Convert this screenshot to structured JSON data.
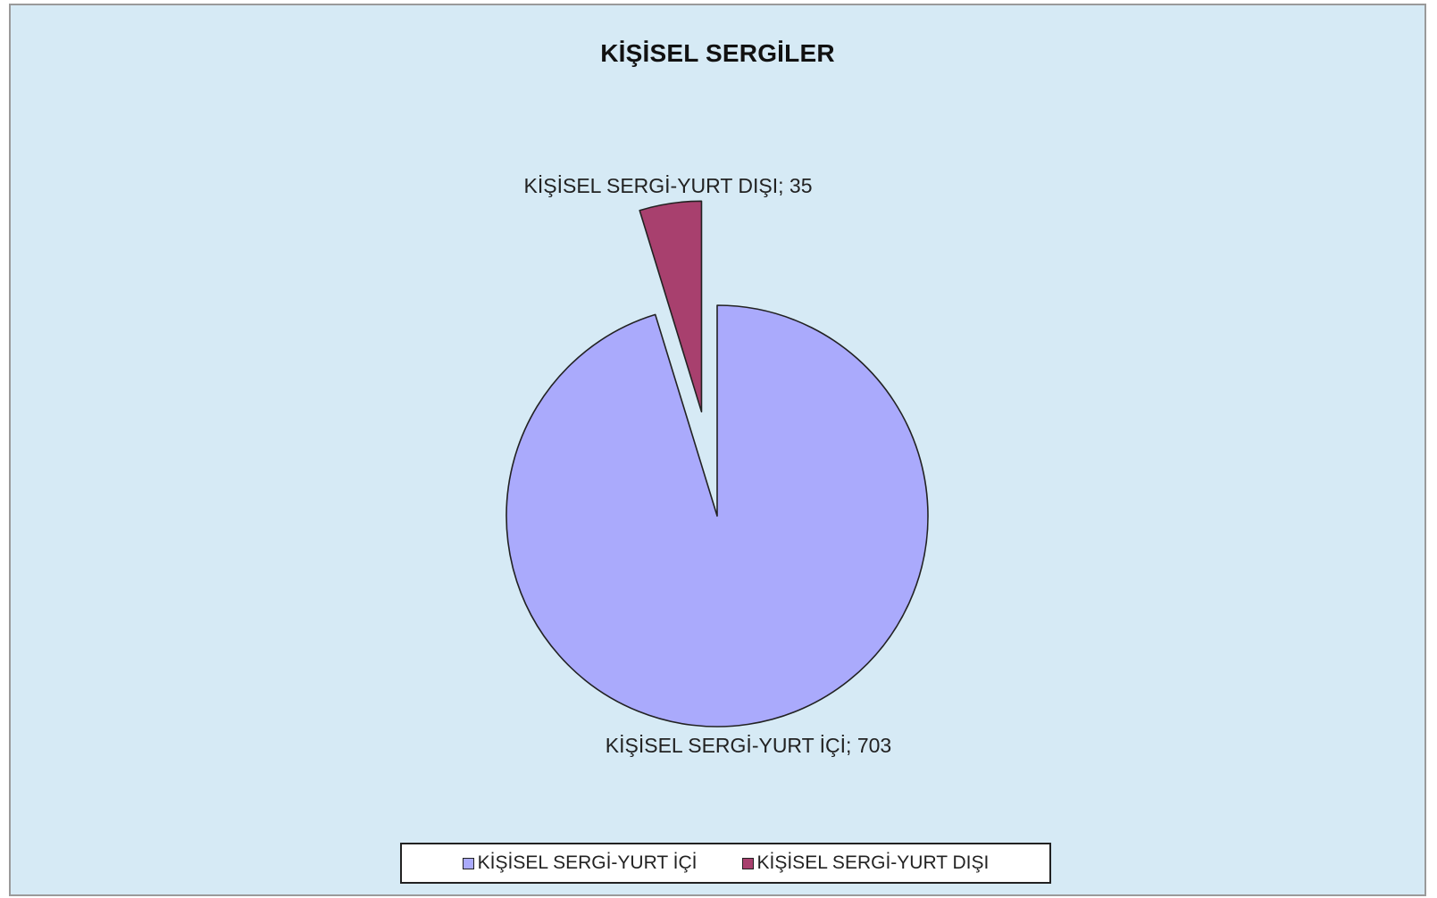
{
  "chart_data": {
    "type": "pie",
    "title": "KİŞİSEL SERGİLER",
    "categories": [
      "KİŞİSEL SERGİ-YURT İÇİ",
      "KİŞİSEL SERGİ-YURT DIŞI"
    ],
    "values": [
      703,
      35
    ],
    "data_labels": [
      "KİŞİSEL SERGİ-YURT İÇİ; 703",
      "KİŞİSEL SERGİ-YURT DIŞI; 35"
    ],
    "colors": [
      "#aaaafc",
      "#a8406e"
    ],
    "exploded": [
      false,
      true
    ],
    "start_angle_deg": 0,
    "direction": "clockwise",
    "legend": {
      "placement": "bottom",
      "items": [
        "KİŞİSEL SERGİ-YURT İÇİ",
        "KİŞİSEL SERGİ-YURT DIŞI"
      ]
    },
    "background": "#d6eaf5"
  }
}
